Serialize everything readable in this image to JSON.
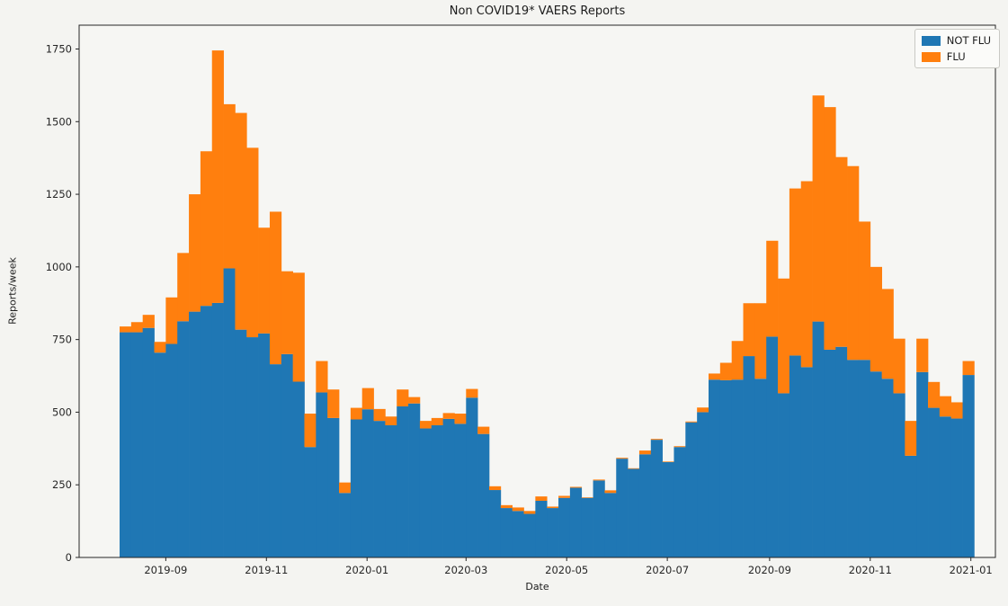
{
  "figure": {
    "background": "#f4f4f1"
  },
  "chart": {
    "title": "Non COVID19* VAERS Reports",
    "xlabel": "Date",
    "ylabel": "Reports/week",
    "axis_color": "#262626",
    "yticks": [
      0,
      250,
      500,
      750,
      1000,
      1250,
      1500,
      1750
    ],
    "xticks": [
      {
        "label": "2019-09",
        "date": "2019-09-01"
      },
      {
        "label": "2019-11",
        "date": "2019-11-01"
      },
      {
        "label": "2020-01",
        "date": "2020-01-01"
      },
      {
        "label": "2020-03",
        "date": "2020-03-01"
      },
      {
        "label": "2020-05",
        "date": "2020-05-01"
      },
      {
        "label": "2020-07",
        "date": "2020-07-01"
      },
      {
        "label": "2020-09",
        "date": "2020-09-01"
      },
      {
        "label": "2020-11",
        "date": "2020-11-01"
      },
      {
        "label": "2021-01",
        "date": "2021-01-01"
      }
    ],
    "legend": {
      "items": [
        {
          "label": "NOT FLU",
          "color": "#1f77b4"
        },
        {
          "label": "FLU",
          "color": "#ff7f0e"
        }
      ]
    }
  },
  "chart_data": {
    "type": "bar",
    "stacked": true,
    "title": "Non COVID19* VAERS Reports",
    "xlabel": "Date",
    "ylabel": "Reports/week",
    "ylim": [
      0,
      1832
    ],
    "grid": false,
    "legend_position": "upper right",
    "bin_unit": "week",
    "week_start_dates": [
      "2019-08-04",
      "2019-08-11",
      "2019-08-18",
      "2019-08-25",
      "2019-09-01",
      "2019-09-08",
      "2019-09-15",
      "2019-09-22",
      "2019-09-29",
      "2019-10-06",
      "2019-10-13",
      "2019-10-20",
      "2019-10-27",
      "2019-11-03",
      "2019-11-10",
      "2019-11-17",
      "2019-11-24",
      "2019-12-01",
      "2019-12-08",
      "2019-12-15",
      "2019-12-22",
      "2019-12-29",
      "2020-01-05",
      "2020-01-12",
      "2020-01-19",
      "2020-01-26",
      "2020-02-02",
      "2020-02-09",
      "2020-02-16",
      "2020-02-23",
      "2020-03-01",
      "2020-03-08",
      "2020-03-15",
      "2020-03-22",
      "2020-03-29",
      "2020-04-05",
      "2020-04-12",
      "2020-04-19",
      "2020-04-26",
      "2020-05-03",
      "2020-05-10",
      "2020-05-17",
      "2020-05-24",
      "2020-05-31",
      "2020-06-07",
      "2020-06-14",
      "2020-06-21",
      "2020-06-28",
      "2020-07-05",
      "2020-07-12",
      "2020-07-19",
      "2020-07-26",
      "2020-08-02",
      "2020-08-09",
      "2020-08-16",
      "2020-08-23",
      "2020-08-30",
      "2020-09-06",
      "2020-09-13",
      "2020-09-20",
      "2020-09-27",
      "2020-10-04",
      "2020-10-11",
      "2020-10-18",
      "2020-10-25",
      "2020-11-01",
      "2020-11-08",
      "2020-11-15",
      "2020-11-22",
      "2020-11-29",
      "2020-12-06",
      "2020-12-13",
      "2020-12-20",
      "2020-12-27"
    ],
    "series": [
      {
        "name": "NOT FLU",
        "color": "#1f77b4",
        "values": [
          775,
          775,
          790,
          705,
          735,
          813,
          846,
          866,
          876,
          995,
          784,
          758,
          771,
          665,
          700,
          605,
          380,
          568,
          480,
          222,
          475,
          510,
          470,
          455,
          520,
          530,
          444,
          455,
          477,
          460,
          550,
          425,
          232,
          170,
          160,
          150,
          195,
          170,
          205,
          240,
          205,
          265,
          222,
          340,
          305,
          355,
          405,
          328,
          380,
          465,
          500,
          612,
          610,
          612,
          693,
          615,
          760,
          565,
          695,
          655,
          812,
          715,
          725,
          680,
          680,
          640,
          615,
          565,
          350,
          638,
          515,
          485,
          478,
          628
        ]
      },
      {
        "name": "FLU",
        "color": "#ff7f0e",
        "values": [
          20,
          35,
          45,
          37,
          160,
          235,
          404,
          532,
          869,
          565,
          746,
          652,
          364,
          525,
          285,
          375,
          115,
          108,
          98,
          36,
          40,
          73,
          41,
          30,
          58,
          22,
          26,
          25,
          20,
          35,
          30,
          25,
          13,
          10,
          12,
          10,
          15,
          5,
          7,
          3,
          2,
          3,
          9,
          3,
          2,
          13,
          3,
          2,
          3,
          3,
          16,
          21,
          60,
          133,
          182,
          260,
          330,
          395,
          575,
          640,
          778,
          835,
          653,
          667,
          476,
          360,
          309,
          188,
          120,
          115,
          89,
          70,
          56,
          48
        ]
      }
    ]
  }
}
